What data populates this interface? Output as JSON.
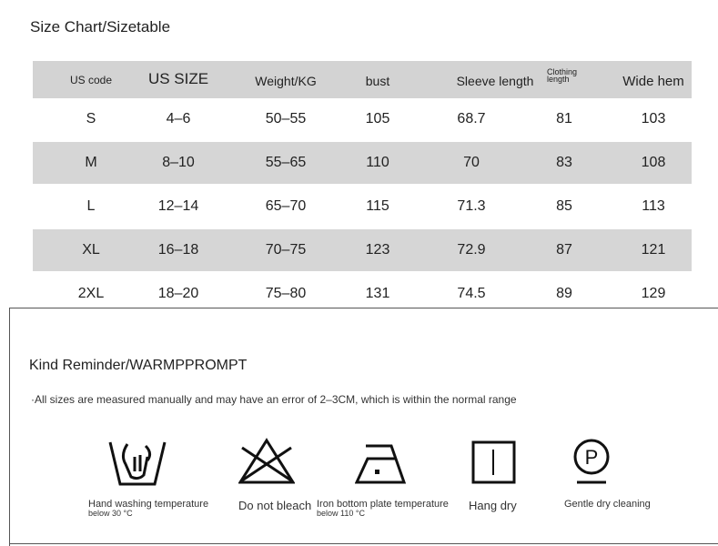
{
  "size_chart": {
    "title": "Size Chart/Sizetable",
    "headers": [
      "US code",
      "US SIZE",
      "Weight/KG",
      "bust",
      "Sleeve length",
      "Clothing length",
      "Wide hem"
    ],
    "rows": [
      [
        "S",
        "4–6",
        "50–55",
        "105",
        "68.7",
        "81",
        "103"
      ],
      [
        "M",
        "8–10",
        "55–65",
        "110",
        "70",
        "83",
        "108"
      ],
      [
        "L",
        "12–14",
        "65–70",
        "115",
        "71.3",
        "85",
        "113"
      ],
      [
        "XL",
        "16–18",
        "70–75",
        "123",
        "72.9",
        "87",
        "121"
      ],
      [
        "2XL",
        "18–20",
        "75–80",
        "131",
        "74.5",
        "89",
        "129"
      ]
    ]
  },
  "reminder": {
    "title": "Kind Reminder/WARMPPROMPT",
    "note": "·All sizes are measured manually and may have an error of 2–3CM, which is within the normal range",
    "care": [
      {
        "icon": "hand-wash-icon",
        "label": "Hand washing temperature",
        "label2": "below 30 °C"
      },
      {
        "icon": "no-bleach-icon",
        "label": "Do not bleach"
      },
      {
        "icon": "iron-icon",
        "label": "Iron bottom plate temperature",
        "label2": "below 110 °C"
      },
      {
        "icon": "hang-dry-icon",
        "label": "Hang dry"
      },
      {
        "icon": "dry-clean-icon",
        "label": "Gentle dry cleaning"
      }
    ]
  }
}
